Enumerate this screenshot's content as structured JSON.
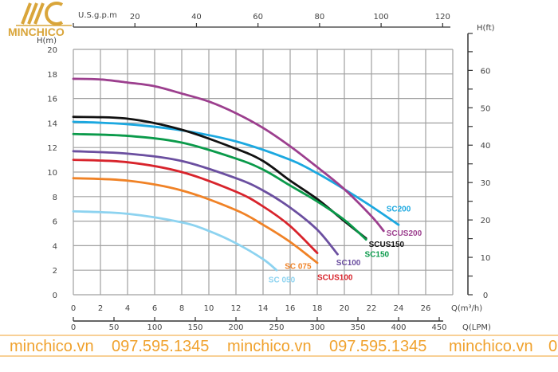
{
  "logo": {
    "text": "MINCHICO",
    "color": "#d9a53a"
  },
  "watermark": {
    "items": [
      "minchico.vn",
      "097.595.1345",
      "minchico.vn",
      "097.595.1345",
      "minchico.vn",
      "0"
    ],
    "color": "#f0a22e"
  },
  "chart_data": {
    "type": "line",
    "title": "",
    "xlabel": "Q(m³/h)",
    "ylabel": "H(m)",
    "y2label": "H(ft)",
    "x_top_label": "U.S.g.p.m",
    "x_bottom2_label": "Q(LPM)",
    "xlim": [
      0,
      28
    ],
    "ylim": [
      0,
      20
    ],
    "grid": true,
    "x_ticks": [
      0,
      2,
      4,
      6,
      8,
      10,
      12,
      14,
      16,
      18,
      20,
      22,
      24,
      26
    ],
    "y_ticks": [
      0,
      2,
      4,
      6,
      8,
      10,
      12,
      14,
      16,
      18,
      20
    ],
    "y2_ticks": [
      0,
      10,
      20,
      30,
      40,
      50,
      60
    ],
    "gpm_ticks": [
      20,
      40,
      60,
      80,
      100,
      120
    ],
    "lpm_ticks": [
      0,
      50,
      100,
      150,
      200,
      250,
      300,
      350,
      400,
      450
    ],
    "series": [
      {
        "name": "SC200",
        "color": "#1ba8e0",
        "points": [
          [
            0,
            14.1
          ],
          [
            4,
            13.9
          ],
          [
            8,
            13.4
          ],
          [
            12,
            12.5
          ],
          [
            16,
            11.0
          ],
          [
            18,
            9.9
          ],
          [
            20,
            8.6
          ],
          [
            22,
            7.2
          ],
          [
            24,
            5.7
          ]
        ]
      },
      {
        "name": "SCUS200",
        "color": "#9c3f8e",
        "points": [
          [
            0,
            17.6
          ],
          [
            2,
            17.55
          ],
          [
            4,
            17.3
          ],
          [
            6,
            17.0
          ],
          [
            8,
            16.4
          ],
          [
            10,
            15.75
          ],
          [
            12,
            14.8
          ],
          [
            14,
            13.6
          ],
          [
            16,
            12.1
          ],
          [
            18,
            10.4
          ],
          [
            20,
            8.6
          ],
          [
            22,
            6.4
          ],
          [
            22.9,
            5.2
          ]
        ]
      },
      {
        "name": "SCUS150",
        "color": "#111111",
        "points": [
          [
            0,
            14.5
          ],
          [
            4,
            14.35
          ],
          [
            8,
            13.45
          ],
          [
            12,
            11.9
          ],
          [
            14,
            10.9
          ],
          [
            16,
            9.3
          ],
          [
            18,
            7.8
          ],
          [
            20,
            6.0
          ],
          [
            21.6,
            4.6
          ]
        ]
      },
      {
        "name": "SC150",
        "color": "#0a9a4a",
        "points": [
          [
            0,
            13.1
          ],
          [
            4,
            12.95
          ],
          [
            8,
            12.4
          ],
          [
            12,
            11.1
          ],
          [
            14,
            10.2
          ],
          [
            16,
            8.9
          ],
          [
            18,
            7.6
          ],
          [
            20,
            6.1
          ],
          [
            21.6,
            4.5
          ]
        ]
      },
      {
        "name": "SC100",
        "color": "#6b4fa0",
        "points": [
          [
            0,
            11.7
          ],
          [
            4,
            11.5
          ],
          [
            8,
            10.9
          ],
          [
            12,
            9.5
          ],
          [
            14,
            8.5
          ],
          [
            16,
            7.1
          ],
          [
            18,
            5.3
          ],
          [
            19.5,
            3.3
          ]
        ]
      },
      {
        "name": "SCUS100",
        "color": "#d8242c",
        "points": [
          [
            0,
            11.0
          ],
          [
            4,
            10.8
          ],
          [
            8,
            10.0
          ],
          [
            12,
            8.4
          ],
          [
            14,
            7.2
          ],
          [
            16,
            5.6
          ],
          [
            18,
            3.4
          ]
        ]
      },
      {
        "name": "SC 075",
        "color": "#f08226",
        "points": [
          [
            0,
            9.5
          ],
          [
            4,
            9.3
          ],
          [
            8,
            8.5
          ],
          [
            12,
            6.9
          ],
          [
            14,
            5.7
          ],
          [
            16,
            4.3
          ],
          [
            18,
            2.6
          ]
        ]
      },
      {
        "name": "SC 050",
        "color": "#8dd3f0",
        "points": [
          [
            0,
            6.8
          ],
          [
            4,
            6.6
          ],
          [
            8,
            5.9
          ],
          [
            10,
            5.2
          ],
          [
            12,
            4.2
          ],
          [
            14,
            2.9
          ],
          [
            15,
            2.0
          ]
        ]
      }
    ]
  }
}
